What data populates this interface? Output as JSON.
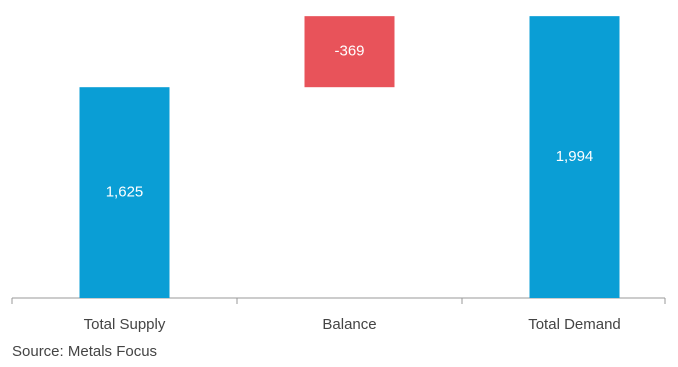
{
  "chart_data": {
    "type": "waterfall",
    "categories": [
      "Total Supply",
      "Balance",
      "Total Demand"
    ],
    "values": [
      1625,
      -369,
      1994
    ],
    "value_labels": [
      "1,625",
      "-369",
      "1,994"
    ],
    "colors": [
      "#0a9ed5",
      "#e8535a",
      "#0a9ed5"
    ],
    "ylim": [
      530,
      2000
    ],
    "source": "Source: Metals Focus"
  }
}
